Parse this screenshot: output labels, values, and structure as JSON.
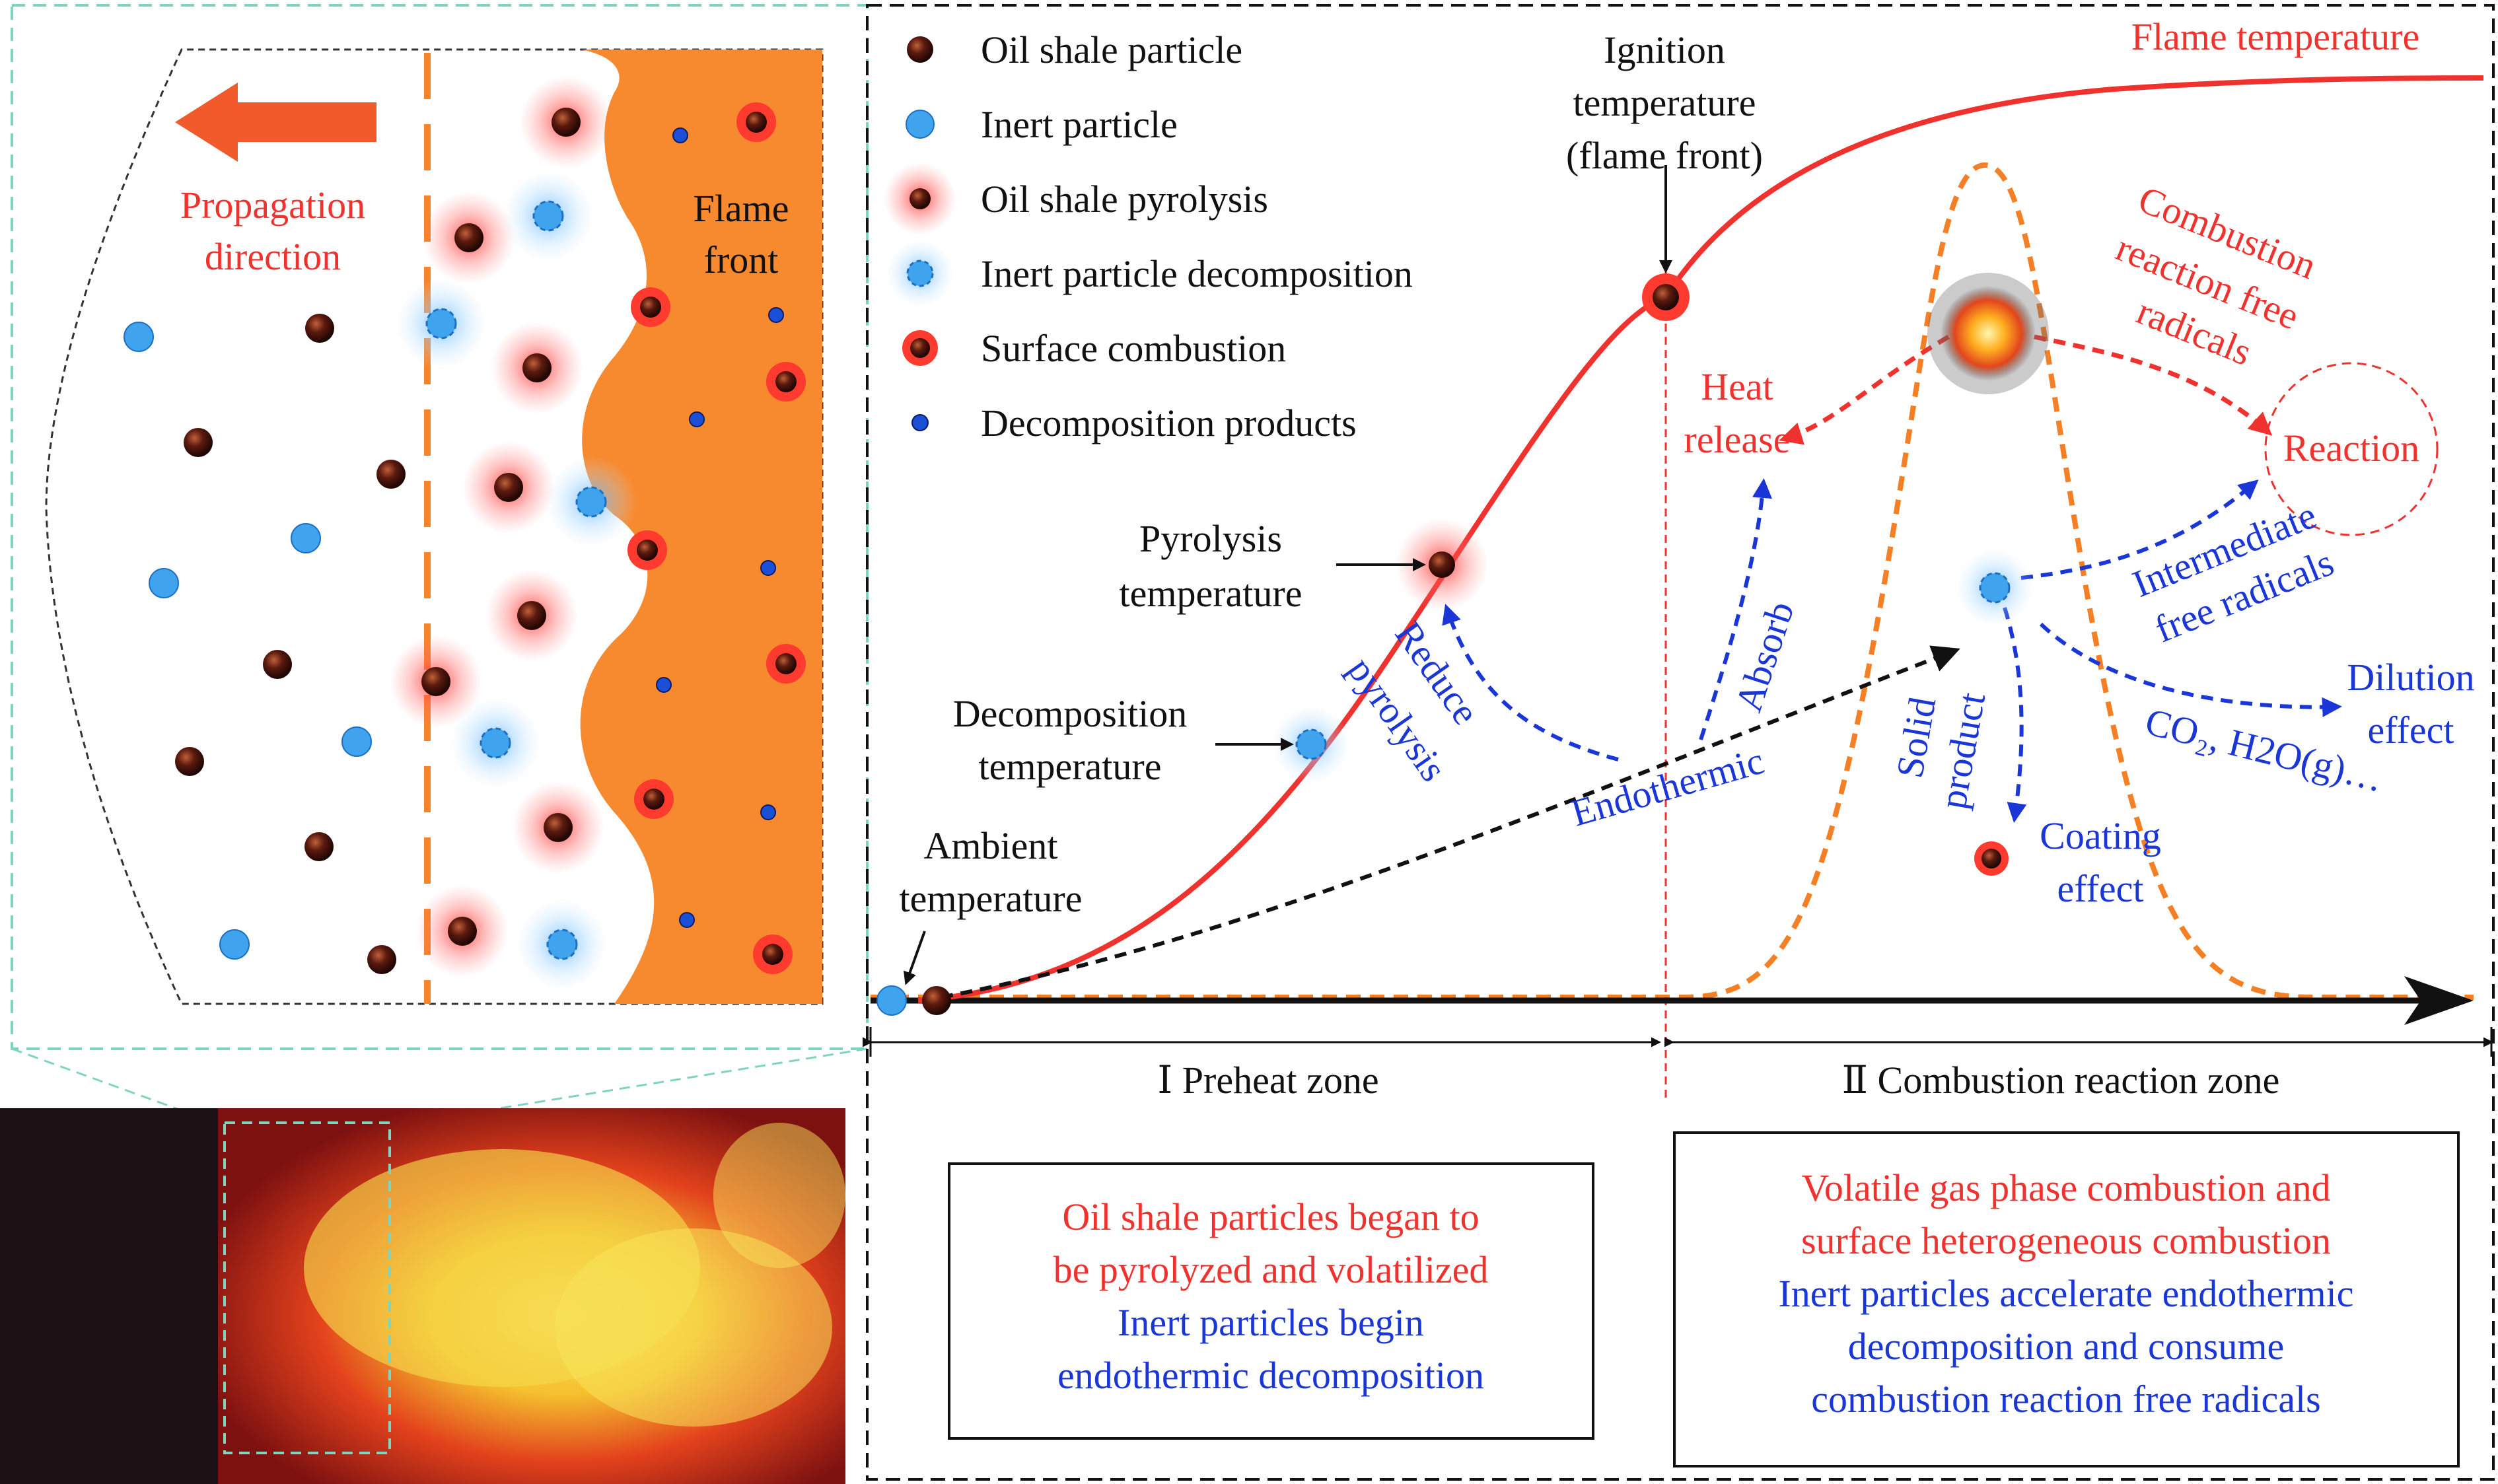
{
  "colors": {
    "red": "#f0322f",
    "blue": "#1a36d6",
    "orange": "#f7832b",
    "dark_orange_dash": "#f57f24",
    "black": "#111111",
    "oil_particle": "#6b1d10",
    "inert_particle": "#3fa3ee",
    "flame_bg": "#f7892e"
  },
  "legend": {
    "oil_shale_particle": "Oil shale particle",
    "inert_particle": "Inert particle",
    "oil_shale_pyrolysis": "Oil shale pyrolysis",
    "inert_decomposition": "Inert particle decomposition",
    "surface_combustion": "Surface  combustion",
    "decomposition_products": "Decomposition products"
  },
  "left_panel": {
    "propagation_line1": "Propagation",
    "propagation_line2": "direction",
    "flame_front_line1": "Flame",
    "flame_front_line2": "front"
  },
  "curve_labels": {
    "flame_temperature": "Flame temperature",
    "ignition_line1": "Ignition",
    "ignition_line2": "temperature",
    "ignition_line3": "(flame front)",
    "pyrolysis_line1": "Pyrolysis",
    "pyrolysis_line2": "temperature",
    "decomposition_line1": "Decomposition",
    "decomposition_line2": "temperature",
    "ambient_line1": "Ambient",
    "ambient_line2": "temperature"
  },
  "process_labels": {
    "reduce_line1": "Reduce",
    "reduce_line2": "pyrolysis",
    "endothermic": "Endothermic",
    "absorb": "Absorb",
    "heat_line1": "Heat",
    "heat_line2": "release",
    "combustion_line1": "Combustion",
    "combustion_line2": "reaction free",
    "combustion_line3": "radicals",
    "reaction": "Reaction",
    "intermediate_line1": "Intermediate",
    "intermediate_line2": "free radicals",
    "solid_line1": "Solid",
    "solid_line2": "product",
    "dilution_line1": "Dilution",
    "dilution_line2": "effect",
    "co2_h2o": "CO₂, H2O(g)…",
    "coating_line1": "Coating",
    "coating_line2": "effect"
  },
  "zones": {
    "preheat": "Ⅰ Preheat zone",
    "combustion": "Ⅱ Combustion reaction zone"
  },
  "preheat_box": {
    "red_line1": "Oil shale particles began to",
    "red_line2": "be pyrolyzed and volatilized",
    "blue_line1": "Inert particles begin",
    "blue_line2": "endothermic decomposition"
  },
  "combustion_box": {
    "red_line1": "Volatile gas phase combustion and",
    "red_line2": "surface heterogeneous combustion",
    "blue_line1": "Inert particles accelerate endothermic",
    "blue_line2": "decomposition and consume",
    "blue_line3": "combustion reaction free radicals"
  }
}
